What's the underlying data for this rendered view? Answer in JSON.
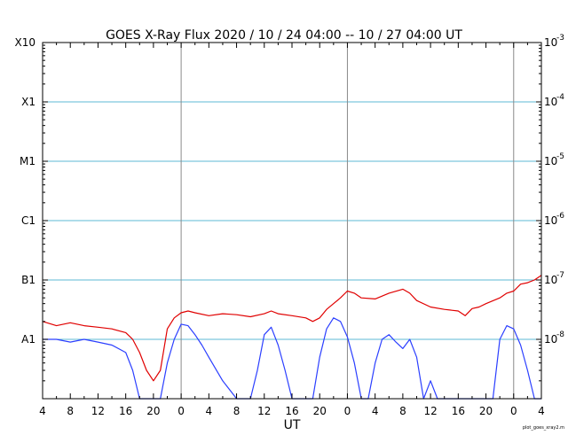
{
  "chart_data": {
    "type": "line",
    "title": "GOES X-Ray Flux   2020 / 10 / 24   04:00 -- 10 / 27   04:00   UT",
    "xlabel": "UT",
    "x_ticks": [
      "4",
      "8",
      "12",
      "16",
      "20",
      "0",
      "4",
      "8",
      "12",
      "16",
      "20",
      "0",
      "4",
      "8",
      "12",
      "16",
      "20",
      "0",
      "4"
    ],
    "x_range_hours": [
      0,
      72
    ],
    "day_boundaries_hours": [
      20,
      44,
      68
    ],
    "yscale": "log",
    "ylim": [
      1e-09,
      0.001
    ],
    "y_left_labels": [
      {
        "label": "A1",
        "value": 1e-08
      },
      {
        "label": "B1",
        "value": 1e-07
      },
      {
        "label": "C1",
        "value": 1e-06
      },
      {
        "label": "M1",
        "value": 1e-05
      },
      {
        "label": "X1",
        "value": 0.0001
      },
      {
        "label": "X10",
        "value": 0.001
      }
    ],
    "y_right_labels": [
      {
        "base": "10",
        "exp": "-8",
        "value": 1e-08
      },
      {
        "base": "10",
        "exp": "-7",
        "value": 1e-07
      },
      {
        "base": "10",
        "exp": "-6",
        "value": 1e-06
      },
      {
        "base": "10",
        "exp": "-5",
        "value": 1e-05
      },
      {
        "base": "10",
        "exp": "-4",
        "value": 0.0001
      },
      {
        "base": "10",
        "exp": "-3",
        "value": 0.001
      }
    ],
    "grid": true,
    "footnote": "plot_goes_xray2.m",
    "series": [
      {
        "color": "#e00000",
        "points": [
          [
            0,
            2e-08
          ],
          [
            2,
            1.7e-08
          ],
          [
            4,
            1.9e-08
          ],
          [
            6,
            1.7e-08
          ],
          [
            8,
            1.6e-08
          ],
          [
            10,
            1.5e-08
          ],
          [
            12,
            1.3e-08
          ],
          [
            13,
            1e-08
          ],
          [
            14,
            6e-09
          ],
          [
            15,
            3e-09
          ],
          [
            16,
            2e-09
          ],
          [
            17,
            3e-09
          ],
          [
            18,
            1.5e-08
          ],
          [
            19,
            2.3e-08
          ],
          [
            20,
            2.8e-08
          ],
          [
            21,
            3e-08
          ],
          [
            22,
            2.8e-08
          ],
          [
            24,
            2.5e-08
          ],
          [
            26,
            2.7e-08
          ],
          [
            28,
            2.6e-08
          ],
          [
            30,
            2.4e-08
          ],
          [
            32,
            2.7e-08
          ],
          [
            33,
            3e-08
          ],
          [
            34,
            2.7e-08
          ],
          [
            36,
            2.5e-08
          ],
          [
            38,
            2.3e-08
          ],
          [
            39,
            2e-08
          ],
          [
            40,
            2.3e-08
          ],
          [
            41,
            3.2e-08
          ],
          [
            42,
            4e-08
          ],
          [
            43,
            5e-08
          ],
          [
            44,
            6.5e-08
          ],
          [
            45,
            6e-08
          ],
          [
            46,
            5e-08
          ],
          [
            48,
            4.8e-08
          ],
          [
            50,
            6e-08
          ],
          [
            52,
            7e-08
          ],
          [
            53,
            6e-08
          ],
          [
            54,
            4.5e-08
          ],
          [
            56,
            3.5e-08
          ],
          [
            58,
            3.2e-08
          ],
          [
            60,
            3e-08
          ],
          [
            61,
            2.5e-08
          ],
          [
            62,
            3.3e-08
          ],
          [
            63,
            3.5e-08
          ],
          [
            64,
            4e-08
          ],
          [
            66,
            5e-08
          ],
          [
            67,
            6e-08
          ],
          [
            68,
            6.5e-08
          ],
          [
            69,
            8.5e-08
          ],
          [
            70,
            9e-08
          ],
          [
            71,
            1e-07
          ],
          [
            72,
            1.2e-07
          ]
        ]
      },
      {
        "color": "#2b3fff",
        "points": [
          [
            0,
            1e-08
          ],
          [
            2,
            1e-08
          ],
          [
            4,
            9e-09
          ],
          [
            6,
            1e-08
          ],
          [
            8,
            9e-09
          ],
          [
            10,
            8e-09
          ],
          [
            12,
            6e-09
          ],
          [
            13,
            3e-09
          ],
          [
            14,
            1e-09
          ],
          [
            15,
            1e-09
          ],
          [
            16,
            1e-09
          ],
          [
            17,
            1e-09
          ],
          [
            18,
            4e-09
          ],
          [
            19,
            1e-08
          ],
          [
            20,
            1.8e-08
          ],
          [
            21,
            1.7e-08
          ],
          [
            22,
            1.2e-08
          ],
          [
            23,
            8e-09
          ],
          [
            24,
            5e-09
          ],
          [
            26,
            2e-09
          ],
          [
            28,
            1e-09
          ],
          [
            30,
            1e-09
          ],
          [
            31,
            3e-09
          ],
          [
            32,
            1.2e-08
          ],
          [
            33,
            1.6e-08
          ],
          [
            34,
            8e-09
          ],
          [
            35,
            3e-09
          ],
          [
            36,
            1e-09
          ],
          [
            37,
            1e-09
          ],
          [
            38,
            1e-09
          ],
          [
            39,
            1e-09
          ],
          [
            40,
            5e-09
          ],
          [
            41,
            1.5e-08
          ],
          [
            42,
            2.3e-08
          ],
          [
            43,
            2e-08
          ],
          [
            44,
            1.1e-08
          ],
          [
            45,
            4e-09
          ],
          [
            46,
            1e-09
          ],
          [
            47,
            1e-09
          ],
          [
            48,
            4e-09
          ],
          [
            49,
            1e-08
          ],
          [
            50,
            1.2e-08
          ],
          [
            51,
            9e-09
          ],
          [
            52,
            7e-09
          ],
          [
            53,
            1e-08
          ],
          [
            54,
            5e-09
          ],
          [
            55,
            1e-09
          ],
          [
            56,
            2e-09
          ],
          [
            57,
            1e-09
          ],
          [
            58,
            1e-09
          ],
          [
            59,
            1e-09
          ],
          [
            60,
            1e-09
          ],
          [
            61,
            1e-09
          ],
          [
            62,
            1e-09
          ],
          [
            63,
            1e-09
          ],
          [
            64,
            1e-09
          ],
          [
            65,
            1e-09
          ],
          [
            66,
            1e-08
          ],
          [
            67,
            1.7e-08
          ],
          [
            68,
            1.5e-08
          ],
          [
            69,
            8e-09
          ],
          [
            70,
            3e-09
          ],
          [
            71,
            1e-09
          ],
          [
            72,
            1e-09
          ]
        ]
      }
    ]
  }
}
